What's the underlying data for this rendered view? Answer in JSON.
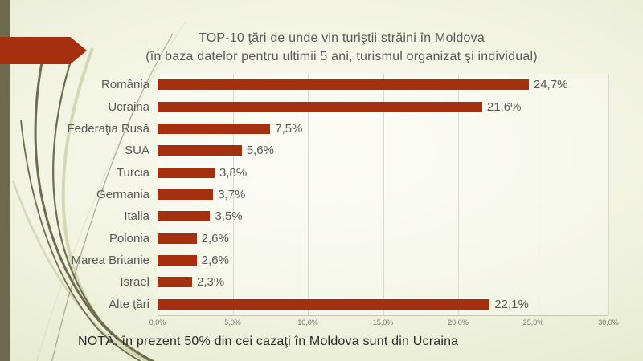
{
  "slide": {
    "title_line1": "TOP-10 ţări de unde vin turiştii străini în Moldova",
    "title_line2": "(în baza datelor pentru ultimii 5 ani, turismul organizat şi individual)",
    "note": "NOTĂ: în prezent 50% din cei cazaţi în Moldova sunt din Ucraina"
  },
  "colors": {
    "accent_red": "#a53010",
    "text_gray": "#595959",
    "note_text": "#2b2b2b",
    "stripe_olive": "#6e6a50",
    "curve_dark": "#6f6b4f",
    "curve_light": "#c8cda8",
    "gridline": "#d9d9cc"
  },
  "chart_data": {
    "type": "bar",
    "orientation": "horizontal",
    "title": "TOP-10 ţări de unde vin turiştii străini în Moldova (în baza datelor pentru ultimii 5 ani, turismul organizat şi individual)",
    "categories": [
      "România",
      "Ucraina",
      "Federaţia Rusă",
      "SUA",
      "Turcia",
      "Germania",
      "Italia",
      "Polonia",
      "Marea Britanie",
      "Israel",
      "Alte ţări"
    ],
    "values": [
      24.7,
      21.6,
      7.5,
      5.6,
      3.8,
      3.7,
      3.5,
      2.6,
      2.6,
      2.3,
      22.1
    ],
    "value_labels": [
      "24,7%",
      "21,6%",
      "7,5%",
      "5,6%",
      "3,8%",
      "3,7%",
      "3,5%",
      "2,6%",
      "2,6%",
      "2,3%",
      "22,1%"
    ],
    "xlim": [
      0,
      30
    ],
    "x_ticks": [
      0,
      5,
      10,
      15,
      20,
      25,
      30
    ],
    "x_tick_labels": [
      "0,0%",
      "5,0%",
      "10,0%",
      "15,0%",
      "20,0%",
      "25,0%",
      "30,0%"
    ],
    "grid": true,
    "legend": false,
    "bar_color": "#a53010",
    "xlabel": "",
    "ylabel": ""
  }
}
